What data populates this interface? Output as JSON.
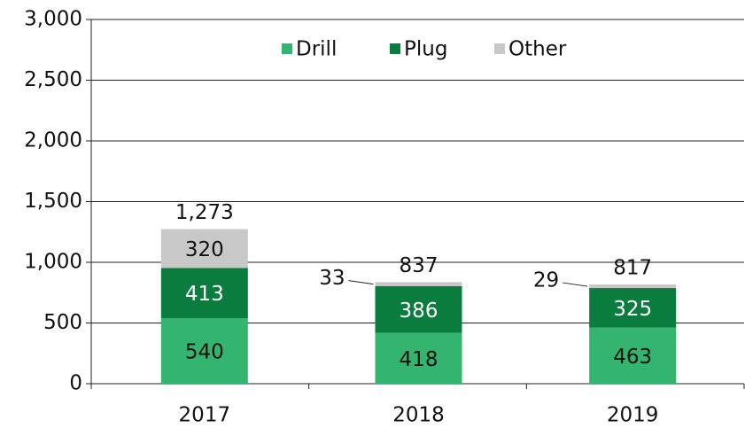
{
  "chart_data": {
    "type": "stacked_bar",
    "categories": [
      "2017",
      "2018",
      "2019"
    ],
    "series": [
      {
        "name": "Drill",
        "color": "#33b56f",
        "label_color": "#111111",
        "values": [
          540,
          418,
          463
        ]
      },
      {
        "name": "Plug",
        "color": "#0a7d3e",
        "label_color": "#ffffff",
        "values": [
          413,
          386,
          325
        ]
      },
      {
        "name": "Other",
        "color": "#c8c8c8",
        "label_color": "#111111",
        "values": [
          320,
          33,
          29
        ]
      }
    ],
    "totals": [
      1273,
      837,
      817
    ],
    "total_labels": [
      "1,273",
      "837",
      "817"
    ],
    "ylim": [
      0,
      3000
    ],
    "yticks": [
      0,
      500,
      {
        "value": 1000,
        "label": "1,000"
      },
      {
        "value": 1500,
        "label": "1,500"
      },
      {
        "value": 2000,
        "label": "2,000"
      },
      {
        "value": 2500,
        "label": "2,500"
      },
      {
        "value": 3000,
        "label": "3,000"
      }
    ],
    "grid": true,
    "legend": "top"
  }
}
